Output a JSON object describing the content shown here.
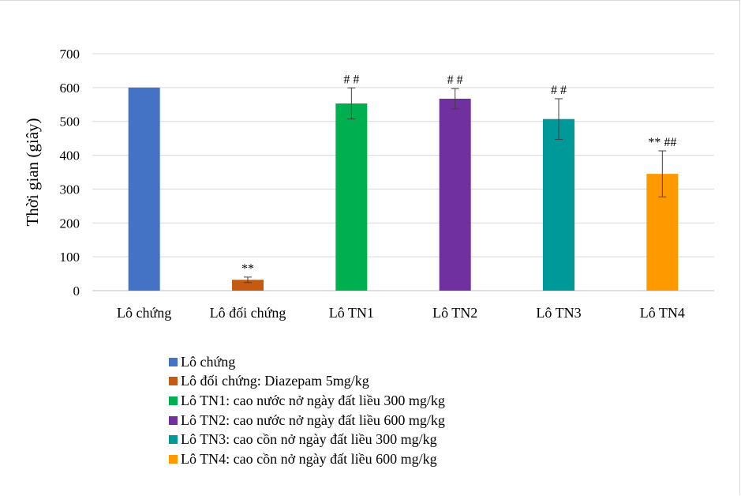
{
  "chart_data": {
    "type": "bar",
    "ylabel": "Thời gian (giây)",
    "ylim": [
      0,
      700
    ],
    "yticks": [
      0,
      100,
      200,
      300,
      400,
      500,
      600,
      700
    ],
    "grid": true,
    "legend_position": "bottom",
    "categories": [
      "Lô chứng",
      "Lô đối chứng",
      "Lô TN1",
      "Lô TN2",
      "Lô TN3",
      "Lô TN4"
    ],
    "values": [
      600,
      32,
      553,
      567,
      507,
      345
    ],
    "errors": [
      0,
      8,
      46,
      30,
      60,
      68
    ],
    "annotations": [
      "",
      "**",
      "# #",
      "# #",
      "# #",
      "** ##"
    ],
    "colors": [
      "#4472C4",
      "#C55A11",
      "#00B050",
      "#7030A0",
      "#009999",
      "#FF9900"
    ],
    "legend": [
      "Lô chứng",
      "Lô đối chứng: Diazepam  5mg/kg",
      "Lô TN1: cao nước nở ngày đất liều  300 mg/kg",
      "Lô TN2: cao nước nở ngày đất liều  600 mg/kg",
      "Lô TN3: cao cồn nở ngày đất liều  300 mg/kg",
      "Lô TN4: cao cồn nở ngày đất liều  600 mg/kg"
    ]
  }
}
